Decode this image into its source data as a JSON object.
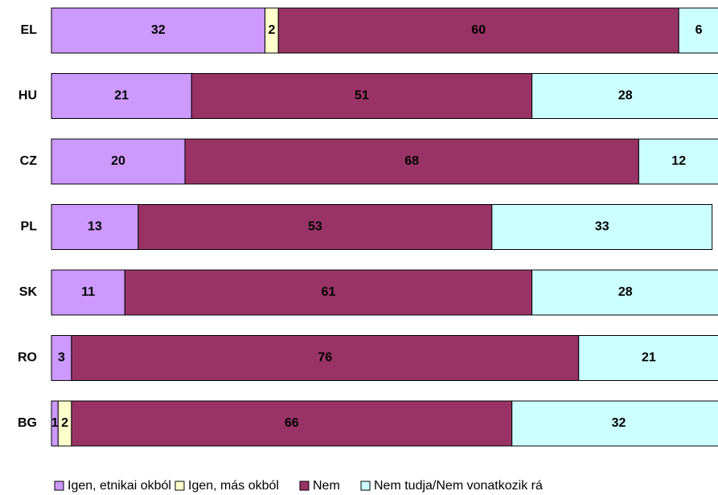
{
  "chart_data": {
    "type": "stacked-bar-horizontal",
    "categories": [
      "EL",
      "HU",
      "CZ",
      "PL",
      "SK",
      "RO",
      "BG"
    ],
    "series": [
      {
        "name": "Igen, etnikai okból",
        "color": "#cc99ff",
        "values": [
          32,
          21,
          20,
          13,
          11,
          3,
          1
        ]
      },
      {
        "name": "Igen, más okból",
        "color": "#ffffcc",
        "values": [
          2,
          0,
          0,
          0,
          0,
          0,
          2
        ]
      },
      {
        "name": "Nem",
        "color": "#993366",
        "values": [
          60,
          51,
          68,
          53,
          61,
          76,
          66
        ]
      },
      {
        "name": "Nem tudja/Nem vonatkozik rá",
        "color": "#ccffff",
        "values": [
          6,
          28,
          12,
          33,
          28,
          21,
          32
        ]
      }
    ],
    "legend": "bottom"
  }
}
